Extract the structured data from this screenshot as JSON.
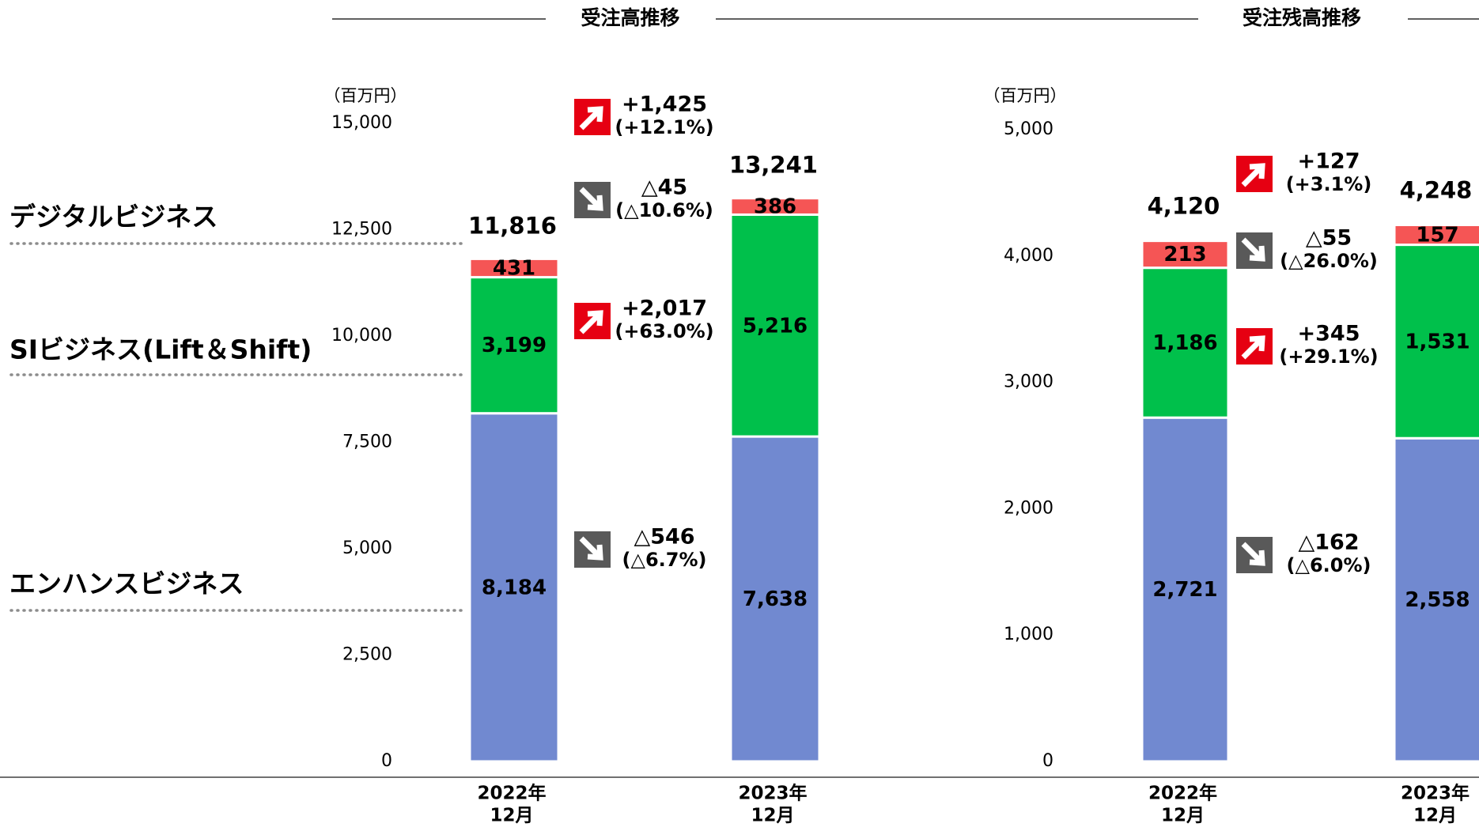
{
  "chart_data": [
    {
      "type": "bar",
      "stacked": true,
      "title": "受注高推移",
      "unit_label": "（百万円）",
      "categories": [
        "2022年\n12月",
        "2023年\n12月"
      ],
      "ylim": [
        0,
        15000
      ],
      "yticks": [
        0,
        2500,
        5000,
        7500,
        10000,
        12500,
        15000
      ],
      "ytick_labels": [
        "0",
        "2,500",
        "5,000",
        "7,500",
        "10,000",
        "12,500",
        "15,000"
      ],
      "series": [
        {
          "name": "エンハンスビジネス",
          "color": "#7189D0",
          "values": [
            8184,
            7638
          ],
          "labels": [
            "8,184",
            "7,638"
          ]
        },
        {
          "name": "SIビジネス(Lift＆Shift)",
          "color": "#00C04B",
          "values": [
            3199,
            5216
          ],
          "labels": [
            "3,199",
            "5,216"
          ]
        },
        {
          "name": "デジタルビジネス",
          "color": "#F55555",
          "values": [
            431,
            386
          ],
          "labels": [
            "431",
            "386"
          ]
        }
      ],
      "totals": [
        "11,816",
        "13,241"
      ],
      "changes": [
        {
          "target": "total",
          "direction": "up",
          "line1": "+1,425",
          "line2": "(+12.1%)"
        },
        {
          "target": "デジタルビジネス",
          "direction": "down",
          "line1": "△45",
          "line2": "(△10.6%)"
        },
        {
          "target": "SIビジネス(Lift＆Shift)",
          "direction": "up",
          "line1": "+2,017",
          "line2": "(+63.0%)"
        },
        {
          "target": "エンハンスビジネス",
          "direction": "down",
          "line1": "△546",
          "line2": "(△6.7%)"
        }
      ]
    },
    {
      "type": "bar",
      "stacked": true,
      "title": "受注残高推移",
      "unit_label": "（百万円）",
      "categories": [
        "2022年\n12月",
        "2023年\n12月"
      ],
      "ylim": [
        0,
        5000
      ],
      "yticks": [
        0,
        1000,
        2000,
        3000,
        4000,
        5000
      ],
      "ytick_labels": [
        "0",
        "1,000",
        "2,000",
        "3,000",
        "4,000",
        "5,000"
      ],
      "series": [
        {
          "name": "エンハンスビジネス",
          "color": "#7189D0",
          "values": [
            2721,
            2558
          ],
          "labels": [
            "2,721",
            "2,558"
          ]
        },
        {
          "name": "SIビジネス(Lift＆Shift)",
          "color": "#00C04B",
          "values": [
            1186,
            1531
          ],
          "labels": [
            "1,186",
            "1,531"
          ]
        },
        {
          "name": "デジタルビジネス",
          "color": "#F55555",
          "values": [
            213,
            157
          ],
          "labels": [
            "213",
            "157"
          ]
        }
      ],
      "totals": [
        "4,120",
        "4,248"
      ],
      "changes": [
        {
          "target": "total",
          "direction": "up",
          "line1": "+127",
          "line2": "(+3.1%)"
        },
        {
          "target": "デジタルビジネス",
          "direction": "down",
          "line1": "△55",
          "line2": "(△26.0%)"
        },
        {
          "target": "SIビジネス(Lift＆Shift)",
          "direction": "up",
          "line1": "+345",
          "line2": "(+29.1%)"
        },
        {
          "target": "エンハンスビジネス",
          "direction": "down",
          "line1": "△162",
          "line2": "(△6.0%)"
        }
      ]
    }
  ],
  "category_labels": [
    "デジタルビジネス",
    "SIビジネス(Lift＆Shift)",
    "エンハンスビジネス"
  ],
  "colors": {
    "up_arrow": "#E60012",
    "down_arrow": "#595959",
    "leader": "#8C8C8C",
    "axis": "#404040"
  }
}
